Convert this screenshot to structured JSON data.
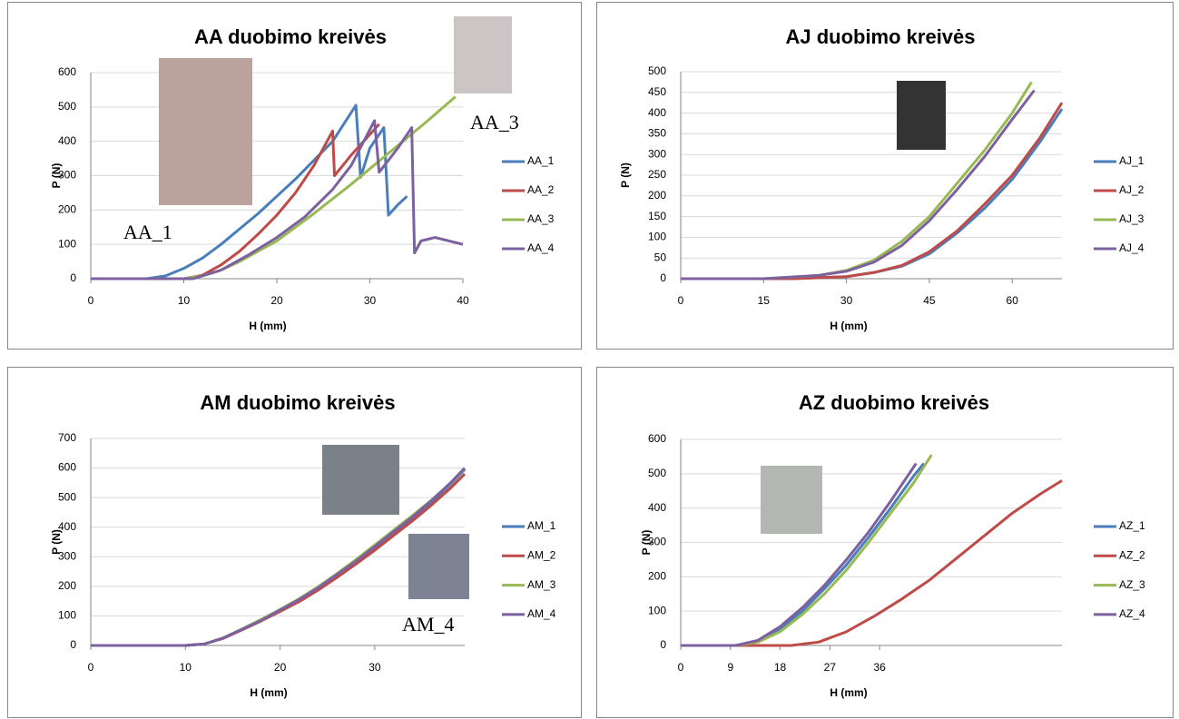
{
  "chart_data": [
    {
      "type": "line",
      "title": "AA duobimo kreivės",
      "xlabel": "H (mm)",
      "ylabel": "P (N)",
      "xlim": [
        0,
        40
      ],
      "xticks": [
        0,
        10,
        20,
        30,
        40
      ],
      "ylim": [
        0,
        600
      ],
      "yticks": [
        0,
        100,
        200,
        300,
        400,
        500,
        600
      ],
      "grid": true,
      "legend": "right",
      "annotations": [
        "AA_1",
        "AA_3"
      ],
      "series": [
        {
          "name": "AA_1",
          "color": "#4a7ebb",
          "x": [
            0,
            6,
            8,
            10,
            12,
            14,
            16,
            18,
            20,
            22,
            24,
            26,
            28.5,
            29,
            30,
            31.5,
            32,
            33,
            34
          ],
          "values": [
            0,
            0,
            8,
            30,
            60,
            100,
            145,
            190,
            240,
            290,
            345,
            400,
            505,
            295,
            380,
            440,
            185,
            215,
            240
          ]
        },
        {
          "name": "AA_2",
          "color": "#be4b48",
          "x": [
            0,
            10,
            12,
            14,
            16,
            18,
            20,
            22,
            24,
            26,
            26.2,
            28,
            30,
            31
          ],
          "values": [
            0,
            0,
            10,
            40,
            80,
            130,
            185,
            250,
            330,
            430,
            300,
            360,
            420,
            450
          ]
        },
        {
          "name": "AA_3",
          "color": "#98b954",
          "x": [
            0,
            10,
            12,
            14,
            16,
            18,
            20,
            24,
            28,
            32,
            36,
            39.2
          ],
          "values": [
            0,
            0,
            8,
            25,
            50,
            80,
            110,
            190,
            275,
            365,
            455,
            530
          ]
        },
        {
          "name": "AA_4",
          "color": "#7d60a0",
          "x": [
            0,
            11,
            14,
            17,
            20,
            23,
            26,
            28,
            30.5,
            31,
            33,
            34.5,
            34.8,
            35.5,
            37,
            40
          ],
          "values": [
            0,
            0,
            25,
            70,
            120,
            180,
            260,
            330,
            460,
            310,
            380,
            440,
            75,
            110,
            120,
            100
          ]
        }
      ]
    },
    {
      "type": "line",
      "title": "AJ duobimo kreivės",
      "xlabel": "H (mm)",
      "ylabel": "P (N)",
      "xlim": [
        0,
        69
      ],
      "xticks": [
        0,
        15,
        30,
        45,
        60
      ],
      "ylim": [
        0,
        500
      ],
      "yticks": [
        0,
        50,
        100,
        150,
        200,
        250,
        300,
        350,
        400,
        450,
        500
      ],
      "grid": true,
      "legend": "right",
      "annotations": [],
      "series": [
        {
          "name": "AJ_1",
          "color": "#4a7ebb",
          "x": [
            0,
            20,
            30,
            35,
            40,
            45,
            50,
            55,
            60,
            65,
            69
          ],
          "values": [
            0,
            0,
            5,
            15,
            30,
            60,
            110,
            170,
            240,
            330,
            410
          ]
        },
        {
          "name": "AJ_2",
          "color": "#be4b48",
          "x": [
            0,
            20,
            30,
            35,
            40,
            45,
            50,
            55,
            60,
            65,
            69
          ],
          "values": [
            0,
            0,
            5,
            15,
            32,
            65,
            115,
            180,
            250,
            340,
            425
          ]
        },
        {
          "name": "AJ_3",
          "color": "#98b954",
          "x": [
            0,
            15,
            25,
            30,
            35,
            40,
            45,
            50,
            55,
            60,
            63.5
          ],
          "values": [
            0,
            0,
            8,
            20,
            45,
            90,
            150,
            230,
            310,
            400,
            475
          ]
        },
        {
          "name": "AJ_4",
          "color": "#7d60a0",
          "x": [
            0,
            15,
            25,
            30,
            35,
            40,
            45,
            50,
            55,
            60,
            64
          ],
          "values": [
            0,
            0,
            8,
            18,
            40,
            80,
            140,
            215,
            295,
            385,
            455
          ]
        }
      ]
    },
    {
      "type": "line",
      "title": "AM duobimo kreivės",
      "xlabel": "H (mm)",
      "ylabel": "P (N)",
      "xlim": [
        0,
        39.5
      ],
      "xticks": [
        0,
        10,
        20,
        30
      ],
      "ylim": [
        0,
        700
      ],
      "yticks": [
        0,
        100,
        200,
        300,
        400,
        500,
        600,
        700
      ],
      "grid": true,
      "legend": "right",
      "annotations": [
        "AM_4"
      ],
      "series": [
        {
          "name": "AM_1",
          "color": "#4a7ebb",
          "x": [
            0,
            10,
            12,
            14,
            16,
            18,
            20,
            22,
            24,
            26,
            28,
            30,
            32,
            34,
            36,
            38,
            39.5
          ],
          "values": [
            0,
            0,
            5,
            25,
            55,
            85,
            118,
            152,
            192,
            236,
            282,
            330,
            380,
            430,
            485,
            545,
            595
          ]
        },
        {
          "name": "AM_2",
          "color": "#be4b48",
          "x": [
            0,
            10,
            12,
            14,
            16,
            18,
            20,
            22,
            24,
            26,
            28,
            30,
            32,
            34,
            36,
            38,
            39.5
          ],
          "values": [
            0,
            0,
            5,
            24,
            53,
            83,
            115,
            148,
            187,
            230,
            275,
            322,
            372,
            422,
            475,
            532,
            580
          ]
        },
        {
          "name": "AM_3",
          "color": "#98b954",
          "x": [
            0,
            10,
            12,
            14,
            16,
            18,
            20,
            22,
            24,
            26,
            28,
            30,
            32,
            34,
            36,
            38,
            39.5
          ],
          "values": [
            0,
            0,
            5,
            26,
            56,
            88,
            122,
            158,
            198,
            243,
            290,
            340,
            390,
            440,
            492,
            548,
            598
          ]
        },
        {
          "name": "AM_4",
          "color": "#7d60a0",
          "x": [
            0,
            10,
            12,
            14,
            16,
            18,
            20,
            22,
            24,
            26,
            28,
            30,
            32,
            34,
            36,
            38,
            39.5
          ],
          "values": [
            0,
            0,
            5,
            25,
            55,
            85,
            120,
            155,
            195,
            240,
            285,
            335,
            385,
            435,
            490,
            550,
            600
          ]
        }
      ]
    },
    {
      "type": "line",
      "title": "AZ duobimo kreivės",
      "xlabel": "H (mm)",
      "ylabel": "P (N)",
      "xlim": [
        0,
        69
      ],
      "xticks": [
        0,
        9,
        18,
        27,
        36
      ],
      "ylim": [
        0,
        600
      ],
      "yticks": [
        0,
        100,
        200,
        300,
        400,
        500,
        600
      ],
      "grid": true,
      "legend": "right",
      "annotations": [],
      "series": [
        {
          "name": "AZ_1",
          "color": "#4a7ebb",
          "x": [
            0,
            10,
            14,
            18,
            22,
            26,
            30,
            34,
            38,
            42,
            44
          ],
          "values": [
            0,
            0,
            12,
            48,
            100,
            165,
            235,
            315,
            400,
            490,
            530
          ]
        },
        {
          "name": "AZ_2",
          "color": "#be4b48",
          "x": [
            0,
            20,
            25,
            30,
            35,
            40,
            45,
            50,
            55,
            60,
            65,
            69
          ],
          "values": [
            0,
            0,
            10,
            40,
            85,
            135,
            190,
            255,
            320,
            385,
            440,
            480
          ]
        },
        {
          "name": "AZ_3",
          "color": "#98b954",
          "x": [
            0,
            10,
            14,
            18,
            22,
            26,
            30,
            34,
            38,
            42,
            45.4
          ],
          "values": [
            0,
            0,
            10,
            40,
            90,
            150,
            220,
            300,
            385,
            470,
            555
          ]
        },
        {
          "name": "AZ_4",
          "color": "#7d60a0",
          "x": [
            0,
            10,
            14,
            18,
            22,
            26,
            30,
            34,
            38,
            42.6
          ],
          "values": [
            0,
            0,
            15,
            55,
            110,
            175,
            250,
            330,
            420,
            530
          ]
        }
      ]
    }
  ]
}
